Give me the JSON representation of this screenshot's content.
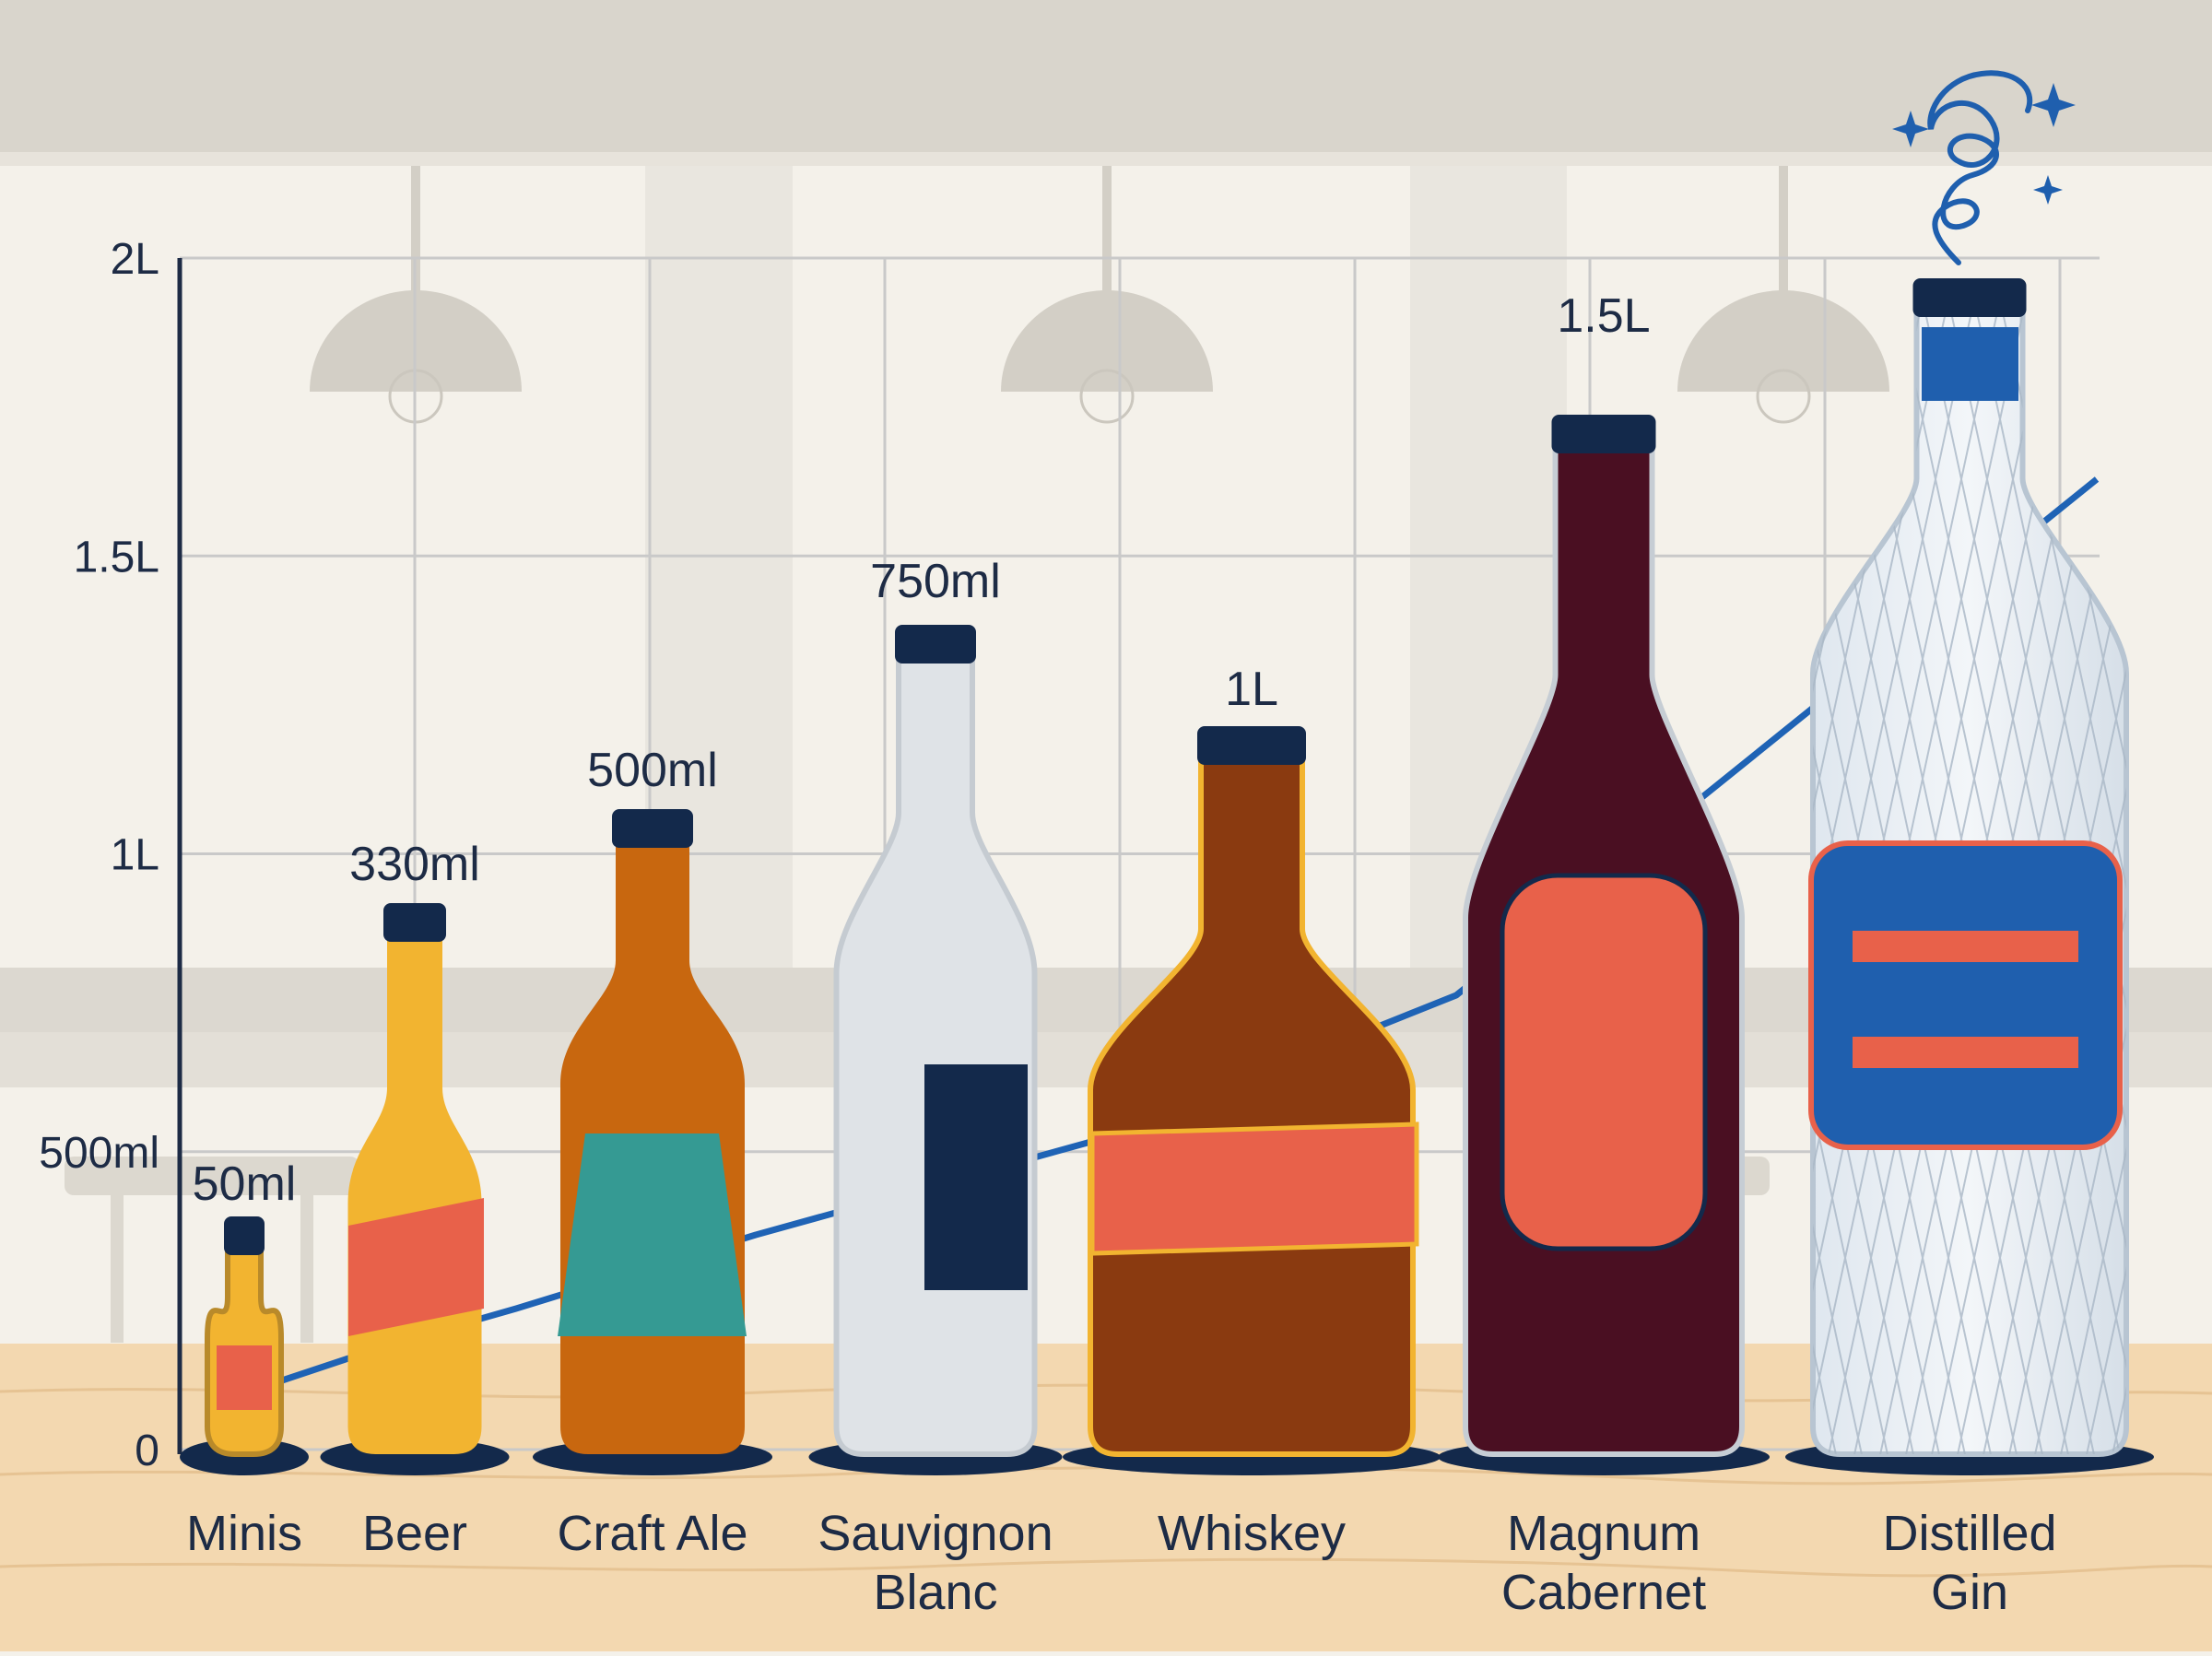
{
  "chart_data": {
    "type": "bar",
    "categories": [
      "Minis",
      "Beer",
      "Craft Ale",
      "Sauvignon Blanc",
      "Whiskey",
      "Magnum Cabernet",
      "Distilled Gin"
    ],
    "category_lines": [
      [
        "Minis"
      ],
      [
        "Beer"
      ],
      [
        "Craft Ale"
      ],
      [
        "Sauvignon",
        "Blanc"
      ],
      [
        "Whiskey"
      ],
      [
        "Magnum",
        "Cabernet"
      ],
      [
        "Distilled",
        "Gin"
      ]
    ],
    "values_ml": [
      50,
      330,
      500,
      750,
      1000,
      1500,
      1750
    ],
    "data_labels": [
      "50ml",
      "330ml",
      "500ml",
      "750ml",
      "1L",
      "1.5L",
      ""
    ],
    "y_ticks": [
      {
        "value": 0,
        "label": "0"
      },
      {
        "value": 500,
        "label": "500ml"
      },
      {
        "value": 1000,
        "label": "1L"
      },
      {
        "value": 1500,
        "label": "1.5L"
      },
      {
        "value": 2000,
        "label": "2L"
      }
    ],
    "ylim": [
      0,
      2000
    ],
    "grid": true,
    "trend_line": true,
    "colors": {
      "axis": "#1d2b45",
      "trend": "#1f63b5",
      "navy": "#13294b",
      "beer_yellow": "#f2b430",
      "ale_amber": "#c8670f",
      "label_red": "#e8614a",
      "teal": "#359a93",
      "wine": "#4a0f22",
      "whiskey": "#8a3a10",
      "gin_blue": "#1f5fae"
    }
  }
}
